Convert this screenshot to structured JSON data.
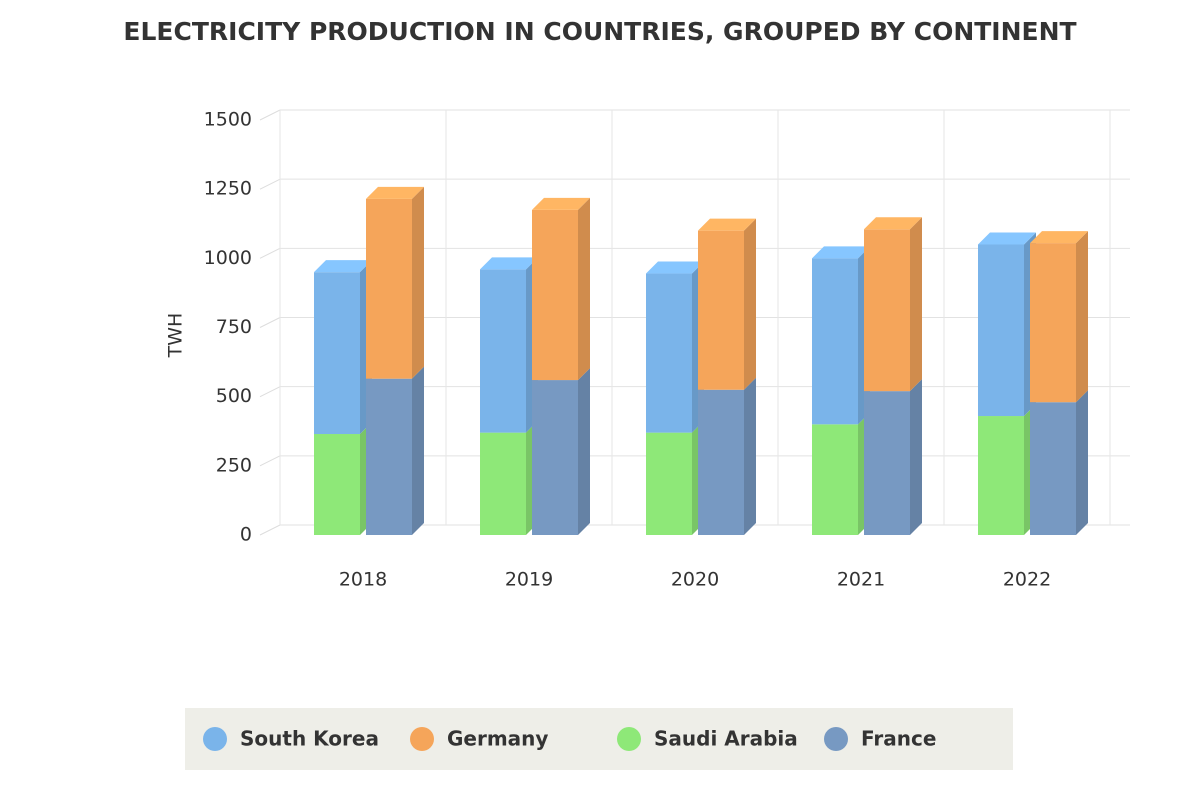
{
  "chart_data": {
    "type": "bar",
    "stacked": true,
    "title": "ELECTRICITY PRODUCTION IN COUNTRIES, GROUPED BY CONTINENT",
    "y_label": "TWH",
    "categories": [
      "2018",
      "2019",
      "2020",
      "2021",
      "2022"
    ],
    "series": [
      {
        "name": "South Korea",
        "color": "#7ab4ea",
        "stack": 1,
        "values": [
          585,
          590,
          575,
          600,
          620
        ]
      },
      {
        "name": "Germany",
        "color": "#f5a55a",
        "stack": 2,
        "values": [
          650,
          615,
          575,
          585,
          575
        ]
      },
      {
        "name": "Saudi Arabia",
        "color": "#8ee878",
        "stack": 1,
        "values": [
          365,
          370,
          370,
          400,
          430
        ]
      },
      {
        "name": "France",
        "color": "#7799c2",
        "stack": 2,
        "values": [
          565,
          560,
          525,
          520,
          480
        ]
      }
    ],
    "ylim": [
      0,
      1500
    ],
    "yticks": [
      0,
      250,
      500,
      750,
      1000,
      1250,
      1500
    ],
    "grid": true
  }
}
